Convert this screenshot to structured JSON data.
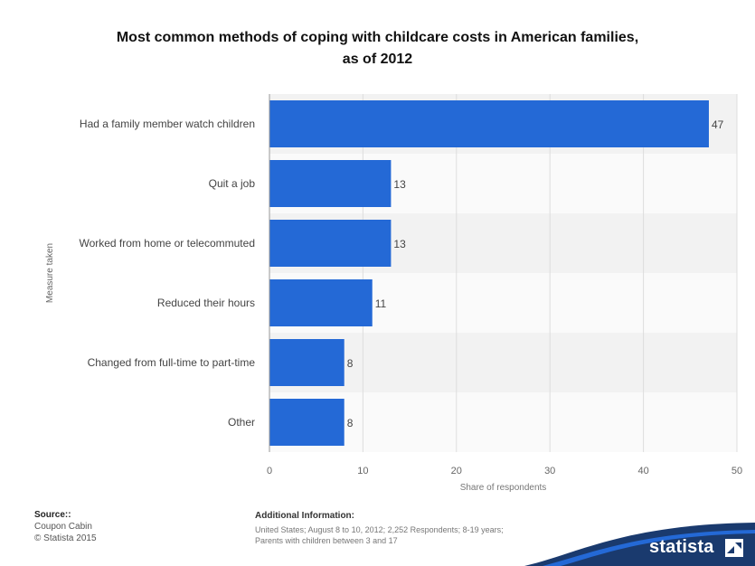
{
  "title_line1": "Most common methods of coping with childcare costs in American families,",
  "title_line2": "as of 2012",
  "chart_data": {
    "type": "bar",
    "orientation": "horizontal",
    "categories": [
      "Had a family member watch children",
      "Quit a job",
      "Worked from home or telecommuted",
      "Reduced their hours",
      "Changed from full-time to part-time",
      "Other"
    ],
    "values": [
      47,
      13,
      13,
      11,
      8,
      8
    ],
    "data_labels": [
      "47",
      "13",
      "13",
      "11",
      "8",
      "8"
    ],
    "xlabel": "Share of respondents",
    "ylabel": "Measure taken",
    "xlim": [
      0,
      50
    ],
    "xticks": [
      0,
      10,
      20,
      30,
      40,
      50
    ],
    "xtick_labels": [
      "0",
      "10",
      "20",
      "30",
      "40",
      "50"
    ],
    "grid": "vertical",
    "bar_color": "#2469d6",
    "band_colors": [
      "#f2f2f2",
      "#fafafa"
    ]
  },
  "source": {
    "heading": "Source::",
    "lines": [
      "Coupon Cabin",
      "© Statista 2015"
    ]
  },
  "additional": {
    "heading": "Additional Information:",
    "lines": [
      "United States; August 8 to 10, 2012; 2,252 Respondents; 8-19 years;",
      "Parents with children between 3 and 17"
    ]
  },
  "brand": {
    "name": "statista",
    "wave_color": "#1a3a6e",
    "accent_color": "#2469d6"
  }
}
